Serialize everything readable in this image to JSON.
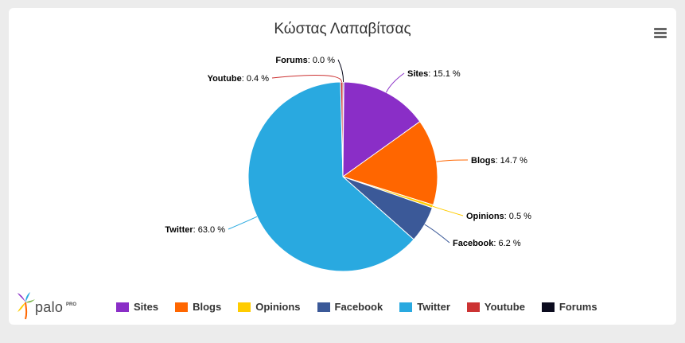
{
  "title": "Κώστας Λαπαβίτσας",
  "menu_icon": "hamburger-menu-icon",
  "logo": {
    "text": "palo",
    "superscript": "PRO"
  },
  "chart_data": {
    "type": "pie",
    "title": "Κώστας Λαπαβίτσας",
    "legend_position": "bottom",
    "series": [
      {
        "name": "Sites",
        "value": 15.1,
        "color": "#8a2ec7"
      },
      {
        "name": "Blogs",
        "value": 14.7,
        "color": "#ff6600"
      },
      {
        "name": "Opinions",
        "value": 0.5,
        "color": "#ffcc00"
      },
      {
        "name": "Facebook",
        "value": 6.2,
        "color": "#3b5998"
      },
      {
        "name": "Twitter",
        "value": 63.0,
        "color": "#29a9e0"
      },
      {
        "name": "Youtube",
        "value": 0.4,
        "color": "#cc3333"
      },
      {
        "name": "Forums",
        "value": 0.0,
        "color": "#0b0b1e"
      }
    ],
    "label_format": "{name}: {value} %"
  }
}
